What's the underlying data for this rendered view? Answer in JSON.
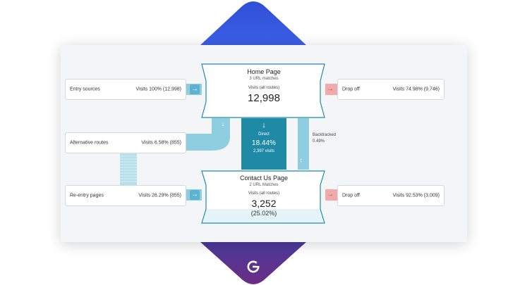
{
  "colors": {
    "brand_top": "#3450d8",
    "brand_bottom": "#5b2f8c",
    "flow_light": "#8fcde0",
    "flow_dark": "#1f8aa6",
    "drop_off": "#f2a9a9",
    "node_border": "#1f8aa6",
    "node_fill_bottom": "#e4f4f8"
  },
  "icons": {
    "right_arrow": "arrow-right-icon",
    "down_arrow": "arrow-down-icon",
    "up_arrow": "arrow-up-icon",
    "logo": "brand-logo-icon"
  },
  "entry_sources": {
    "label": "Entry sources",
    "value": "Visits 100% (12,998)"
  },
  "alternative_routes": {
    "label": "Alternative routes",
    "value": "Visits 6.58% (855)"
  },
  "reentry_pages": {
    "label": "Re-entry pages",
    "value": "Visits 26.29% (855)"
  },
  "drop_off_top": {
    "label": "Drop off",
    "value": "Visits 74.98% (9,746)"
  },
  "drop_off_bottom": {
    "label": "Drop off",
    "value": "Visits 92.53% (3,009)"
  },
  "home_node": {
    "title": "Home Page",
    "matches": "3 URL matches",
    "visits_label": "Visits (all routes)",
    "visits": "12,998"
  },
  "contact_node": {
    "title": "Contact Us Page",
    "matches": "2 URL Matches",
    "visits_label": "Visits (all routes)",
    "visits": "3,252",
    "percent": "(25.02%)"
  },
  "direct": {
    "label": "Direct",
    "percent": "18.44%",
    "visits": "2,397 visits"
  },
  "backtracked": {
    "label": "Backtracked",
    "percent": "0.49%"
  }
}
